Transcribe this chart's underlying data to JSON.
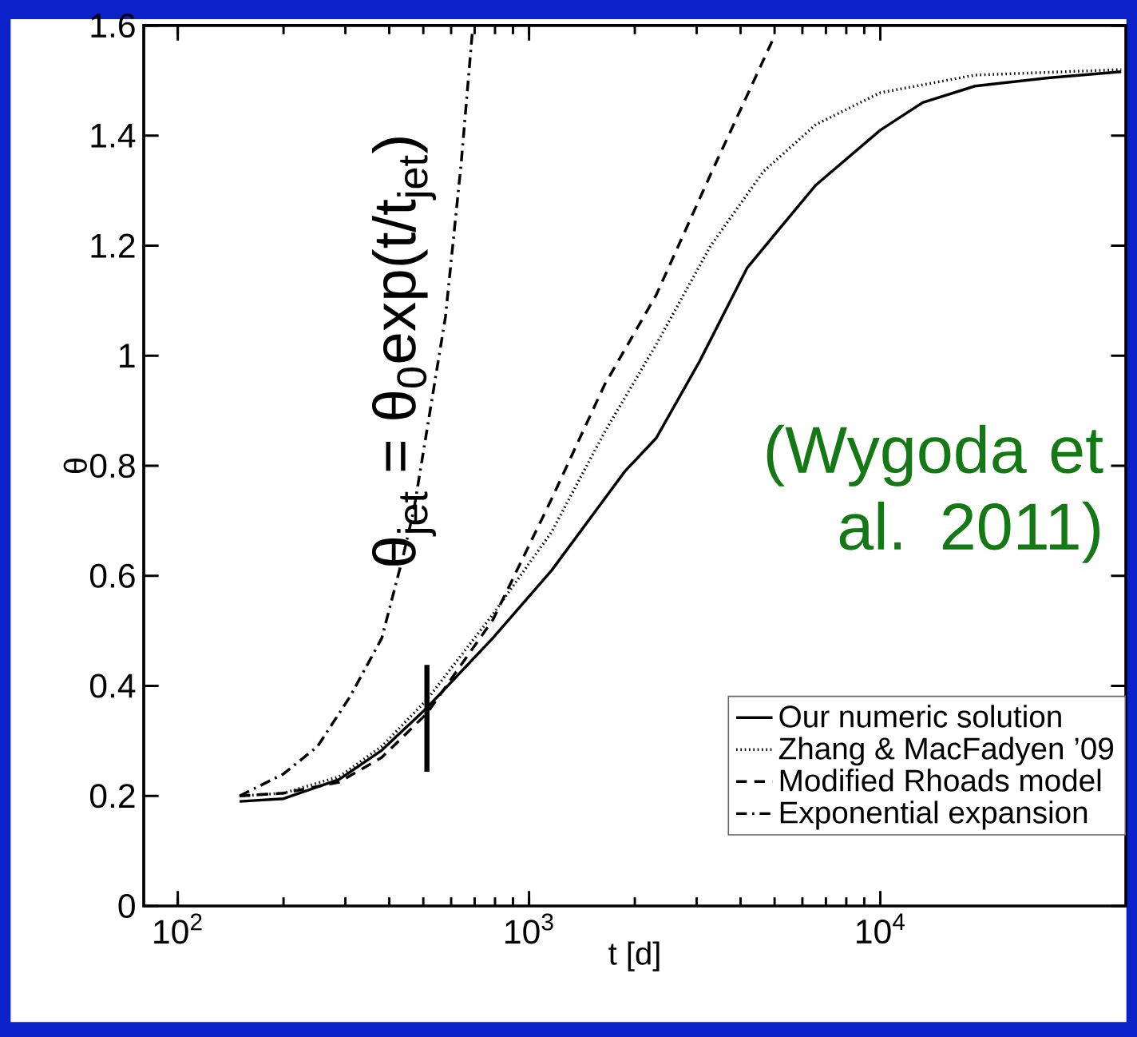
{
  "chart_data": {
    "type": "line",
    "xlabel": "t [d]",
    "ylabel": "θ",
    "log": "x",
    "xlim": [
      80,
      50000
    ],
    "ylim": [
      0,
      1.6
    ],
    "xticks": [
      {
        "value": 100,
        "label": "10$^{2}$"
      },
      {
        "value": 1000,
        "label": "10$^{3}$"
      },
      {
        "value": 10000,
        "label": "10$^{4}$"
      }
    ],
    "yticks": [
      0,
      0.2,
      0.4,
      0.6,
      0.8,
      1,
      1.2,
      1.4,
      1.6
    ],
    "legend": "bottom right",
    "grid": false,
    "annotations": [
      "θ$_{jet}$ = θ$_{0}$exp(t/t$_{jet}$)",
      "(Wygoda et al. 2011)"
    ],
    "series": [
      {
        "name": "Our numeric solution",
        "color": "#000000",
        "line_style": "solid",
        "x": [
          150,
          200,
          288,
          381,
          512,
          789,
          1160,
          1875,
          2300,
          3060,
          4180,
          5150,
          6550,
          10000,
          13200,
          18600,
          30000,
          48500
        ],
        "values": [
          0.19,
          0.195,
          0.23,
          0.283,
          0.36,
          0.487,
          0.61,
          0.79,
          0.85,
          0.99,
          1.16,
          1.23,
          1.31,
          1.41,
          1.46,
          1.49,
          1.505,
          1.516
        ]
      },
      {
        "name": "Zhang & MacFadyen ’09",
        "color": "#000000",
        "line_style": "dotted",
        "x": [
          150,
          200,
          288,
          381,
          512,
          789,
          1160,
          1637,
          2300,
          3290,
          4650,
          6550,
          10000,
          18600,
          48500
        ],
        "values": [
          0.2,
          0.205,
          0.235,
          0.29,
          0.375,
          0.53,
          0.68,
          0.86,
          1.02,
          1.2,
          1.335,
          1.42,
          1.478,
          1.51,
          1.52
        ]
      },
      {
        "name": "Modified Rhoads model",
        "color": "#000000",
        "line_style": "dashed",
        "x": [
          150,
          200,
          288,
          381,
          512,
          789,
          1160,
          1637,
          2300,
          3290,
          4990
        ],
        "values": [
          0.2,
          0.205,
          0.225,
          0.27,
          0.35,
          0.52,
          0.74,
          0.946,
          1.11,
          1.33,
          1.58
        ]
      },
      {
        "name": "Exponential expansion",
        "color": "#000000",
        "line_style": "dashdot",
        "x": [
          150,
          200,
          250,
          309,
          381,
          437,
          470,
          578,
          641,
          690
        ],
        "values": [
          0.2,
          0.24,
          0.29,
          0.38,
          0.487,
          0.633,
          0.72,
          1.07,
          1.35,
          1.59
        ]
      },
      {
        "color": "#000000",
        "line_style": "solid",
        "x": [
          512,
          512
        ],
        "values": [
          0.244,
          0.438
        ]
      }
    ]
  }
}
